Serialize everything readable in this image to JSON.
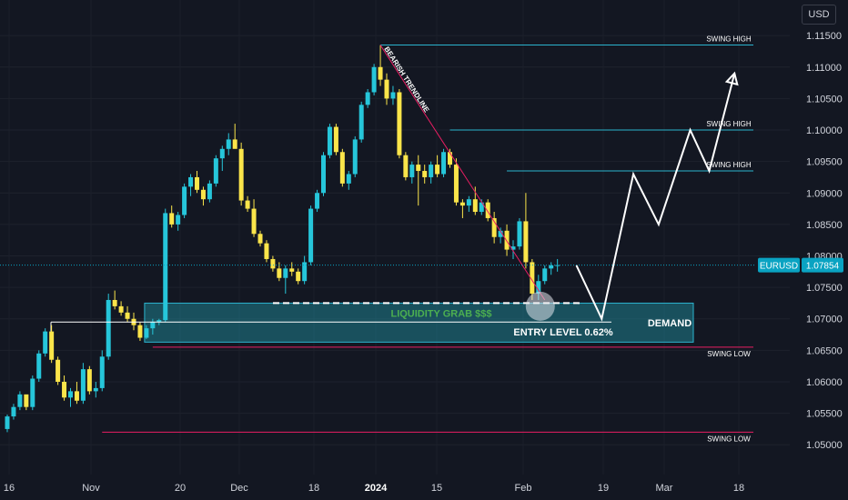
{
  "currency_button": "USD",
  "colors": {
    "background": "#131722",
    "bull": "#26c6da",
    "bear": "#fbe54a",
    "level": "#2bb4cf",
    "trendline": "#e91e63",
    "demand_zone": "#2196a6",
    "price_tag": "#0aa3c2",
    "liquidity_text": "#4caf50",
    "projection": "#ffffff"
  },
  "chart_data": {
    "type": "candlestick",
    "symbol": "EURUSD",
    "last_price": "1.07854",
    "ylim": [
      1.047,
      1.1195
    ],
    "y_ticks": [
      "1.11500",
      "1.11000",
      "1.10500",
      "1.10000",
      "1.09500",
      "1.09000",
      "1.08500",
      "1.08000",
      "1.07500",
      "1.07000",
      "1.06500",
      "1.06000",
      "1.05500",
      "1.05000"
    ],
    "x_ticks": [
      {
        "label": "16",
        "bold": false
      },
      {
        "label": "Nov",
        "bold": false
      },
      {
        "label": "20",
        "bold": false
      },
      {
        "label": "Dec",
        "bold": false
      },
      {
        "label": "18",
        "bold": false
      },
      {
        "label": "2024",
        "bold": true
      },
      {
        "label": "15",
        "bold": false
      },
      {
        "label": "Feb",
        "bold": false
      },
      {
        "label": "19",
        "bold": false
      },
      {
        "label": "Mar",
        "bold": false
      },
      {
        "label": "18",
        "bold": false
      }
    ],
    "candles": [
      [
        1.0525,
        1.0548,
        1.052,
        1.0545
      ],
      [
        1.0545,
        1.0565,
        1.054,
        1.056
      ],
      [
        1.056,
        1.0585,
        1.0555,
        1.058
      ],
      [
        1.058,
        1.0575,
        1.0555,
        1.056
      ],
      [
        1.056,
        1.061,
        1.0555,
        1.0605
      ],
      [
        1.0605,
        1.065,
        1.06,
        1.0645
      ],
      [
        1.0645,
        1.0685,
        1.064,
        1.068
      ],
      [
        1.068,
        1.069,
        1.063,
        1.0635
      ],
      [
        1.0635,
        1.064,
        1.0595,
        1.06
      ],
      [
        1.06,
        1.061,
        1.057,
        1.0575
      ],
      [
        1.0575,
        1.059,
        1.056,
        1.0585
      ],
      [
        1.0585,
        1.06,
        1.0565,
        1.057
      ],
      [
        1.057,
        1.063,
        1.0565,
        1.062
      ],
      [
        1.062,
        1.0625,
        1.058,
        1.0585
      ],
      [
        1.0585,
        1.06,
        1.0575,
        1.059
      ],
      [
        1.059,
        1.065,
        1.0585,
        1.064
      ],
      [
        1.064,
        1.074,
        1.0635,
        1.073
      ],
      [
        1.073,
        1.0745,
        1.0715,
        1.072
      ],
      [
        1.072,
        1.0728,
        1.0705,
        1.071
      ],
      [
        1.071,
        1.072,
        1.0695,
        1.07
      ],
      [
        1.07,
        1.071,
        1.0682,
        1.069
      ],
      [
        1.069,
        1.0695,
        1.0665,
        1.067
      ],
      [
        1.067,
        1.069,
        1.0668,
        1.0685
      ],
      [
        1.0685,
        1.07,
        1.0675,
        1.0695
      ],
      [
        1.0695,
        1.07,
        1.069,
        1.0698
      ],
      [
        1.0698,
        1.0875,
        1.0695,
        1.0868
      ],
      [
        1.0868,
        1.088,
        1.0845,
        1.085
      ],
      [
        1.085,
        1.087,
        1.084,
        1.0865
      ],
      [
        1.0865,
        1.0915,
        1.086,
        1.091
      ],
      [
        1.091,
        1.093,
        1.0895,
        1.0925
      ],
      [
        1.0925,
        1.0935,
        1.09,
        1.0905
      ],
      [
        1.0905,
        1.091,
        1.088,
        1.089
      ],
      [
        1.089,
        1.092,
        1.0885,
        1.0915
      ],
      [
        1.0915,
        1.096,
        1.091,
        1.0955
      ],
      [
        1.0955,
        1.0975,
        1.0935,
        1.097
      ],
      [
        1.097,
        1.0995,
        1.096,
        1.0985
      ],
      [
        1.0985,
        1.101,
        1.0975,
        1.097
      ],
      [
        1.097,
        1.098,
        1.088,
        1.0888
      ],
      [
        1.0888,
        1.0895,
        1.087,
        1.0875
      ],
      [
        1.0875,
        1.089,
        1.083,
        1.0835
      ],
      [
        1.0835,
        1.084,
        1.0815,
        1.082
      ],
      [
        1.082,
        1.0825,
        1.079,
        1.0795
      ],
      [
        1.0795,
        1.08,
        1.0775,
        1.078
      ],
      [
        1.078,
        1.079,
        1.076,
        1.0765
      ],
      [
        1.0765,
        1.0785,
        1.074,
        1.078
      ],
      [
        1.078,
        1.079,
        1.0768,
        1.0775
      ],
      [
        1.0775,
        1.078,
        1.0755,
        1.076
      ],
      [
        1.076,
        1.08,
        1.0755,
        1.079
      ],
      [
        1.079,
        1.088,
        1.0785,
        1.0875
      ],
      [
        1.0875,
        1.0905,
        1.087,
        1.09
      ],
      [
        1.09,
        1.0965,
        1.0895,
        1.096
      ],
      [
        1.096,
        1.101,
        1.0955,
        1.1005
      ],
      [
        1.1005,
        1.101,
        1.096,
        1.0965
      ],
      [
        1.0965,
        1.097,
        1.091,
        1.0915
      ],
      [
        1.0915,
        1.0935,
        1.0905,
        1.093
      ],
      [
        1.093,
        1.099,
        1.0925,
        1.0985
      ],
      [
        1.0985,
        1.1045,
        1.098,
        1.104
      ],
      [
        1.104,
        1.1065,
        1.1035,
        1.106
      ],
      [
        1.106,
        1.1105,
        1.1055,
        1.11
      ],
      [
        1.11,
        1.1135,
        1.107,
        1.108
      ],
      [
        1.108,
        1.109,
        1.104,
        1.105
      ],
      [
        1.105,
        1.107,
        1.104,
        1.106
      ],
      [
        1.106,
        1.1065,
        1.0955,
        1.096
      ],
      [
        1.096,
        1.0965,
        1.092,
        1.0925
      ],
      [
        1.0925,
        1.095,
        1.0915,
        1.0945
      ],
      [
        1.0945,
        1.096,
        1.088,
        1.0935
      ],
      [
        1.0935,
        1.0945,
        1.0915,
        1.0925
      ],
      [
        1.0925,
        1.095,
        1.0915,
        1.0945
      ],
      [
        1.0945,
        1.096,
        1.0925,
        1.093
      ],
      [
        1.093,
        1.097,
        1.0925,
        1.0965
      ],
      [
        1.0965,
        1.097,
        1.094,
        1.0945
      ],
      [
        1.0945,
        1.0955,
        1.088,
        1.0885
      ],
      [
        1.0885,
        1.089,
        1.086,
        1.088
      ],
      [
        1.088,
        1.0895,
        1.087,
        1.089
      ],
      [
        1.089,
        1.091,
        1.0865,
        1.087
      ],
      [
        1.087,
        1.089,
        1.0865,
        1.0885
      ],
      [
        1.0885,
        1.089,
        1.0855,
        1.086
      ],
      [
        1.086,
        1.087,
        1.082,
        1.083
      ],
      [
        1.083,
        1.0845,
        1.082,
        1.084
      ],
      [
        1.084,
        1.085,
        1.08,
        1.081
      ],
      [
        1.081,
        1.0825,
        1.0795,
        1.0815
      ],
      [
        1.0815,
        1.086,
        1.081,
        1.0855
      ],
      [
        1.0855,
        1.09,
        1.078,
        1.079
      ],
      [
        1.079,
        1.0795,
        1.073,
        1.074
      ],
      [
        1.074,
        1.077,
        1.073,
        1.076
      ],
      [
        1.076,
        1.0785,
        1.0755,
        1.078
      ],
      [
        1.078,
        1.079,
        1.077,
        1.0785
      ],
      [
        1.0785,
        1.0795,
        1.0775,
        1.07854
      ]
    ],
    "levels": [
      {
        "label": "SWING HIGH",
        "price": 1.1135,
        "from_bar": 59
      },
      {
        "label": "SWING HIGH",
        "price": 1.1,
        "from_bar": 70
      },
      {
        "label": "SWING HIGH",
        "price": 1.0935,
        "from_bar": 79
      },
      {
        "label": "SWING LOW",
        "price": 1.0655,
        "from_bar": 23
      },
      {
        "label": "SWING LOW",
        "price": 1.052,
        "from_bar": 15
      }
    ],
    "demand_zone": {
      "label": "DEMAND",
      "top": 1.0725,
      "bottom": 1.0663,
      "from_bar": 22
    },
    "liquidity_line": {
      "label": "LIQUIDITY GRAB $$$",
      "price": 1.0725,
      "from_bar": 45,
      "to_bar": 89
    },
    "entry_line": {
      "label": "ENTRY LEVEL 0.62%",
      "price": 1.0695,
      "from_bar": 6,
      "to_bar": 92
    },
    "trendline": {
      "label": "BEARISH TRENDLINE",
      "from": [
        59,
        1.1135
      ],
      "to": [
        85,
        1.073
      ]
    },
    "projection": [
      [
        90,
        1.0785
      ],
      [
        94,
        1.07
      ],
      [
        99,
        1.093
      ],
      [
        103,
        1.085
      ],
      [
        108,
        1.1
      ],
      [
        111,
        1.0935
      ],
      [
        115,
        1.109
      ]
    ]
  }
}
